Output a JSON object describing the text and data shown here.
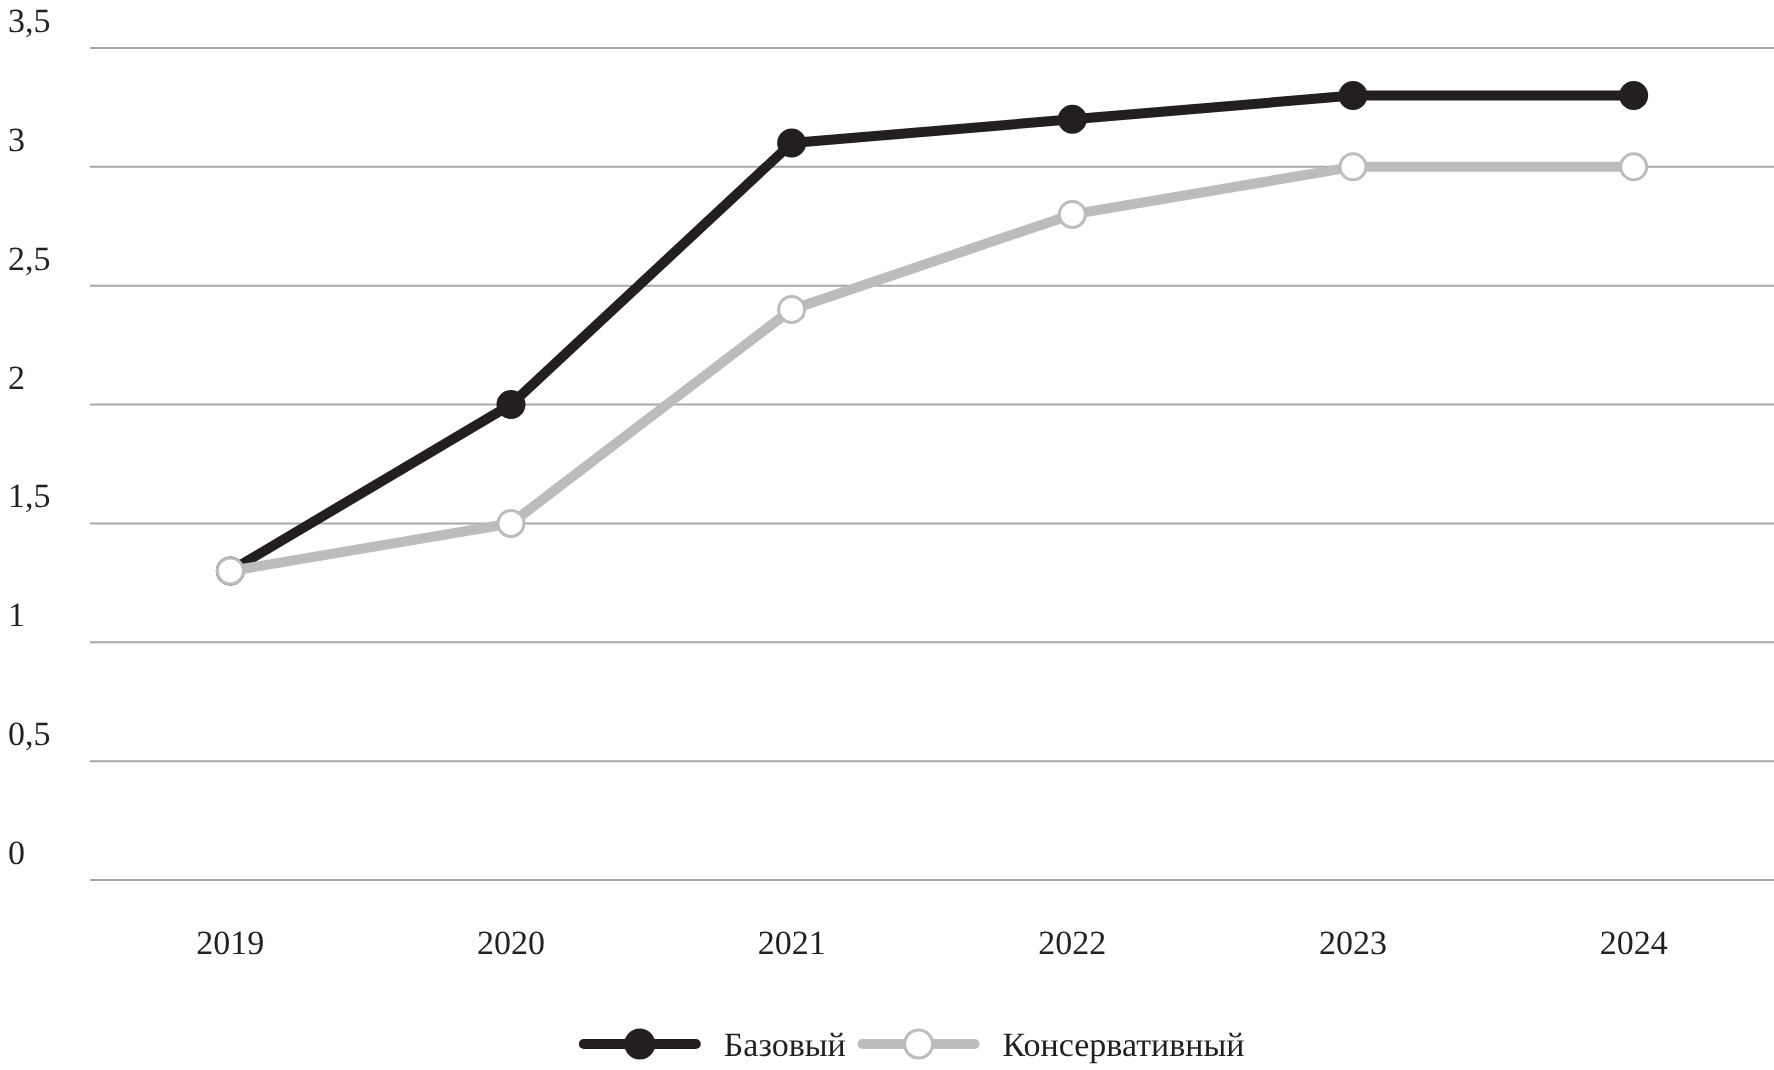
{
  "chart_data": {
    "type": "line",
    "categories": [
      "2019",
      "2020",
      "2021",
      "2022",
      "2023",
      "2024"
    ],
    "series": [
      {
        "name": "Базовый",
        "color": "#231f20",
        "values": [
          1.3,
          2.0,
          3.1,
          3.2,
          3.3,
          3.3
        ]
      },
      {
        "name": "Консервативный",
        "color": "#bcbcbe",
        "values": [
          1.3,
          1.5,
          2.4,
          2.8,
          3.0,
          3.0
        ]
      }
    ],
    "ylim": [
      0,
      3.5
    ],
    "yticks": [
      0,
      {
        "value": 0.5,
        "label": "0,5"
      },
      1,
      {
        "value": 1.5,
        "label": "1,5"
      },
      2,
      {
        "value": 2.5,
        "label": "2,5"
      },
      3,
      {
        "value": 3.5,
        "label": "3,5"
      }
    ],
    "grid": "y",
    "legend": "bottom",
    "marker": "circle",
    "line_style": "solid"
  }
}
